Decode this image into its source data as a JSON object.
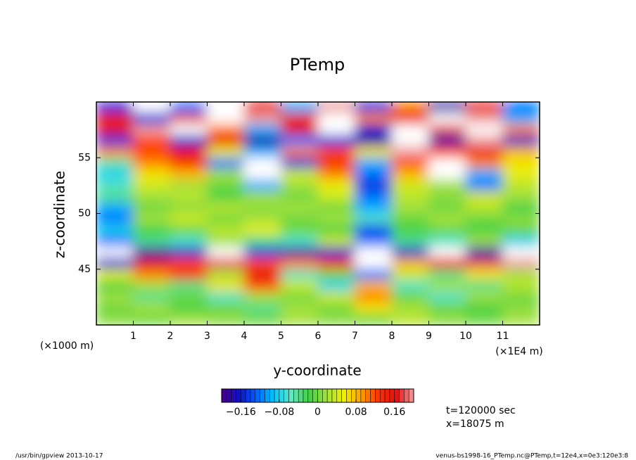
{
  "chart_data": {
    "type": "heatmap",
    "title": "PTemp",
    "xlabel": "y-coordinate",
    "ylabel": "z-coordinate",
    "xunit_label": "(×1E4 m)",
    "xunit_label_left": "(×1000 m)",
    "x": [
      0.5,
      1.5,
      2.5,
      3.5,
      4.5,
      5.5,
      6.5,
      7.5,
      8.5,
      9.5,
      10.5,
      11.5
    ],
    "y": [
      59.5,
      58.5,
      57.5,
      56.5,
      55.5,
      54.5,
      53.5,
      52.5,
      51.5,
      50.5,
      49.5,
      48.5,
      47.5,
      46.5,
      45.5,
      44.5,
      43.5,
      42.5,
      41.5,
      40.5
    ],
    "z": [
      [
        -0.15,
        0.25,
        -0.12,
        0.25,
        0.15,
        -0.1,
        0.2,
        -0.15,
        0.1,
        -0.18,
        0.15,
        -0.12
      ],
      [
        0.15,
        -0.15,
        0.18,
        0.25,
        0.2,
        0.15,
        0.25,
        0.1,
        0.15,
        0.25,
        0.2,
        -0.1
      ],
      [
        0.16,
        0.2,
        0.25,
        0.1,
        -0.1,
        0.16,
        0.25,
        -0.16,
        0.25,
        0.18,
        0.25,
        0.1
      ],
      [
        -0.15,
        0.12,
        -0.16,
        0.15,
        -0.18,
        -0.12,
        -0.15,
        -0.18,
        0.25,
        -0.18,
        0.2,
        -0.16
      ],
      [
        0.1,
        0.12,
        0.15,
        0.05,
        -0.1,
        0.1,
        0.12,
        0.06,
        0.2,
        0.12,
        0.15,
        0.08
      ],
      [
        -0.05,
        0.1,
        0.14,
        -0.12,
        0.25,
        -0.15,
        0.14,
        -0.1,
        0.12,
        0.25,
        0.1,
        0.06
      ],
      [
        -0.08,
        0.06,
        0.08,
        0.02,
        0.25,
        0.04,
        0.1,
        -0.12,
        0.08,
        0.25,
        -0.1,
        0.05
      ],
      [
        -0.06,
        0.04,
        0.02,
        0.0,
        -0.1,
        0.02,
        0.05,
        -0.15,
        0.04,
        0.02,
        -0.12,
        0.03
      ],
      [
        -0.04,
        0.02,
        0.03,
        -0.02,
        0.02,
        0.0,
        0.04,
        -0.12,
        0.03,
        0.01,
        0.04,
        0.02
      ],
      [
        -0.1,
        0.0,
        0.01,
        0.03,
        0.01,
        0.02,
        0.0,
        -0.1,
        0.02,
        0.0,
        0.03,
        -0.02
      ],
      [
        -0.12,
        0.02,
        0.04,
        0.0,
        0.02,
        0.0,
        0.02,
        -0.06,
        0.0,
        0.02,
        0.0,
        0.01
      ],
      [
        -0.08,
        -0.02,
        0.0,
        0.03,
        0.05,
        0.0,
        -0.02,
        -0.14,
        -0.02,
        0.0,
        -0.02,
        0.0
      ],
      [
        -0.12,
        -0.04,
        -0.06,
        0.02,
        -0.04,
        -0.06,
        0.04,
        -0.12,
        -0.04,
        -0.06,
        0.02,
        -0.08
      ],
      [
        0.25,
        -0.18,
        -0.16,
        0.25,
        -0.15,
        -0.18,
        -0.16,
        0.25,
        -0.16,
        0.25,
        -0.18,
        0.25
      ],
      [
        -0.16,
        0.16,
        0.12,
        0.18,
        0.12,
        0.1,
        0.14,
        0.25,
        0.08,
        0.15,
        0.18,
        0.2
      ],
      [
        0.05,
        0.1,
        0.14,
        0.02,
        0.16,
        -0.06,
        0.0,
        -0.12,
        0.04,
        -0.04,
        0.06,
        0.02
      ],
      [
        -0.02,
        0.02,
        -0.04,
        0.06,
        0.12,
        0.04,
        -0.08,
        0.08,
        -0.06,
        0.02,
        -0.04,
        0.03
      ],
      [
        0.02,
        -0.04,
        0.0,
        -0.06,
        0.02,
        0.0,
        0.04,
        0.1,
        0.0,
        -0.06,
        0.02,
        0.0
      ],
      [
        0.0,
        0.02,
        -0.02,
        0.0,
        -0.04,
        0.02,
        0.0,
        0.06,
        0.02,
        0.0,
        -0.02,
        0.01
      ],
      [
        0.01,
        0.0,
        0.02,
        0.01,
        0.0,
        0.02,
        0.01,
        0.0,
        0.03,
        0.01,
        0.0,
        0.02
      ]
    ],
    "xlim": [
      0,
      12
    ],
    "xticks": [
      1,
      2,
      3,
      4,
      5,
      6,
      7,
      8,
      9,
      10,
      11
    ],
    "ylim": [
      40,
      60
    ],
    "yticks": [
      45,
      50,
      55
    ],
    "colorbar": {
      "lim": [
        -0.2,
        0.2
      ],
      "ticks": [
        {
          "value": -0.16,
          "label": "−0.16"
        },
        {
          "value": -0.08,
          "label": "−0.08"
        },
        0,
        0.08,
        0.16
      ],
      "colors": [
        "#4b0082",
        "#1010c8",
        "#0060ff",
        "#00c8ff",
        "#60e8c0",
        "#40d040",
        "#a0e040",
        "#f0f000",
        "#ffa000",
        "#ff3000",
        "#e01010",
        "#f0a0a0"
      ],
      "over_color": "#ffffff"
    },
    "annotations": [
      "t=120000 sec",
      "x=18075 m"
    ],
    "footer_left": "/usr/bin/gpview   2013-10-17",
    "footer_right": "venus-bs1998-16_PTemp.nc@PTemp,t=12e4,x=0e3:120e3:8"
  }
}
